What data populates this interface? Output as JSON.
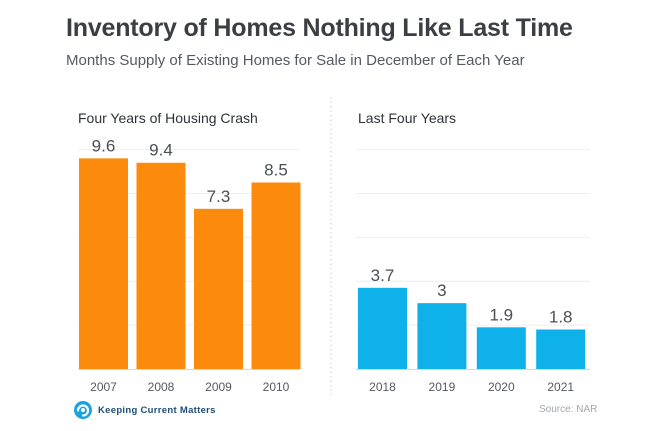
{
  "header": {
    "title": "Inventory of Homes Nothing Like Last Time",
    "subtitle": "Months Supply of Existing Homes for Sale in December of Each Year"
  },
  "footer": {
    "logo_text": "Keeping Current Matters",
    "source": "Source: NAR"
  },
  "chart_data": [
    {
      "type": "bar",
      "title": "Four Years of Housing Crash",
      "categories": [
        "2007",
        "2008",
        "2009",
        "2010"
      ],
      "values": [
        9.6,
        9.4,
        7.3,
        8.5
      ],
      "data_labels": [
        "9.6",
        "9.4",
        "7.3",
        "8.5"
      ],
      "color": "#fb8a0d",
      "ylim": [
        0,
        10.3
      ],
      "grid": true
    },
    {
      "type": "bar",
      "title": "Last Four Years",
      "categories": [
        "2018",
        "2019",
        "2020",
        "2021"
      ],
      "values": [
        3.7,
        3,
        1.9,
        1.8
      ],
      "data_labels": [
        "3.7",
        "3",
        "1.9",
        "1.8"
      ],
      "color": "#0fb1ea",
      "ylim": [
        0,
        10.3
      ],
      "grid": true
    }
  ]
}
